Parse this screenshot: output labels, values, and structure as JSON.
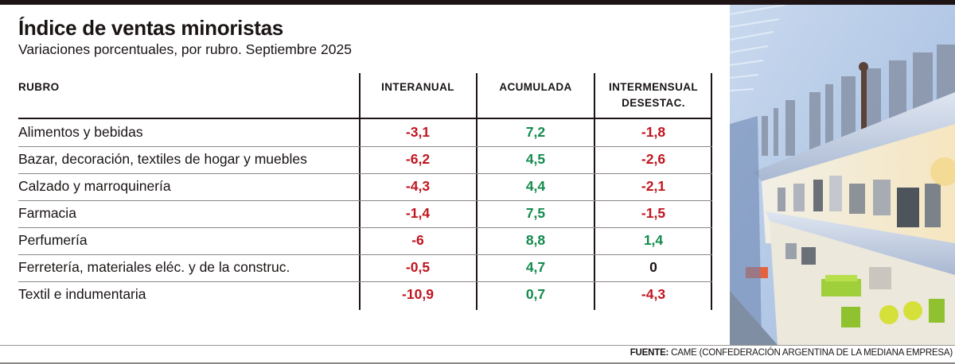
{
  "header": {
    "title": "Índice de ventas minoristas",
    "subtitle": "Variaciones porcentuales, por rubro. Septiembre 2025"
  },
  "colors": {
    "negative": "#c0151f",
    "positive": "#138a4c",
    "neutral": "#1a1414",
    "rule": "#1e1416"
  },
  "chart_data": {
    "type": "table",
    "title": "Índice de ventas minoristas",
    "subtitle": "Variaciones porcentuales, por rubro. Septiembre 2025",
    "columns": [
      "RUBRO",
      "INTERANUAL",
      "ACUMULADA",
      "INTERMENSUAL DESESTAC."
    ],
    "column_header_lines": [
      [
        "RUBRO"
      ],
      [
        "INTERANUAL"
      ],
      [
        "ACUMULADA"
      ],
      [
        "INTERMENSUAL",
        "DESESTAC."
      ]
    ],
    "rows": [
      {
        "rubro": "Alimentos y bebidas",
        "interanual": "-3,1",
        "acumulada": "7,2",
        "intermensual": "-1,8"
      },
      {
        "rubro": "Bazar, decoración, textiles de hogar y muebles",
        "interanual": "-6,2",
        "acumulada": "4,5",
        "intermensual": "-2,6"
      },
      {
        "rubro": "Calzado y marroquinería",
        "interanual": "-4,3",
        "acumulada": "4,4",
        "intermensual": "-2,1"
      },
      {
        "rubro": "Farmacia",
        "interanual": "-1,4",
        "acumulada": "7,5",
        "intermensual": "-1,5"
      },
      {
        "rubro": "Perfumería",
        "interanual": "-6",
        "acumulada": "8,8",
        "intermensual": "1,4"
      },
      {
        "rubro": "Ferretería, materiales eléc. y de la construc.",
        "interanual": "-0,5",
        "acumulada": "4,7",
        "intermensual": "0"
      },
      {
        "rubro": "Textil e indumentaria",
        "interanual": "-10,9",
        "acumulada": "0,7",
        "intermensual": "-4,3"
      }
    ],
    "values": {
      "interanual": [
        -3.1,
        -6.2,
        -4.3,
        -1.4,
        -6,
        -0.5,
        -10.9
      ],
      "acumulada": [
        7.2,
        4.5,
        4.4,
        7.5,
        8.8,
        4.7,
        0.7
      ],
      "intermensual": [
        -1.8,
        -2.6,
        -2.1,
        -1.5,
        1.4,
        0,
        -4.3
      ]
    }
  },
  "photo": {
    "description": "Estanterías de un bazar con utensilios de cocina"
  },
  "source": {
    "label": "FUENTE:",
    "text": " CAME (CONFEDERACIÓN ARGENTINA DE LA MEDIANA EMPRESA)"
  }
}
